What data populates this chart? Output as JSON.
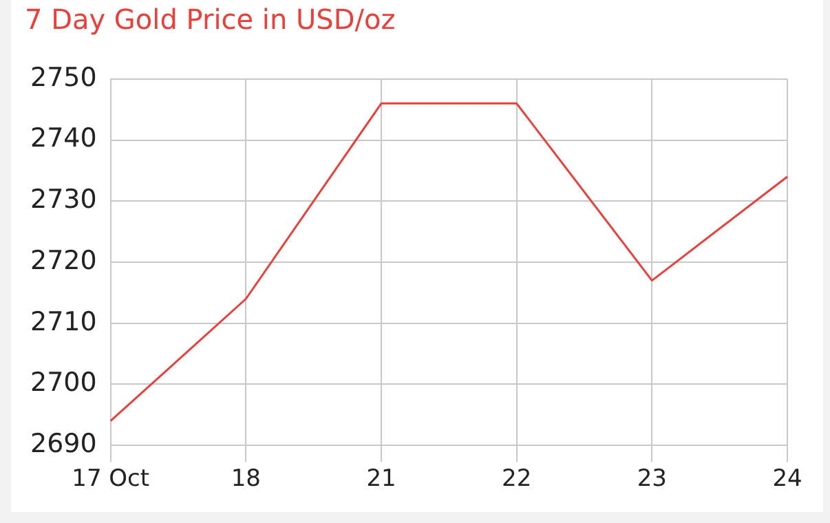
{
  "chart_data": {
    "type": "line",
    "title": "7 Day Gold Price in USD/oz",
    "categories": [
      "17 Oct",
      "18",
      "21",
      "22",
      "23",
      "24"
    ],
    "series": [
      {
        "color": "#e8403a",
        "values": [
          2694,
          2714,
          2746,
          2746,
          2717,
          2734
        ]
      }
    ],
    "ylim": [
      2690,
      2750
    ],
    "yticks": [
      2690,
      2700,
      2710,
      2720,
      2730,
      2740,
      2750
    ],
    "grid": true,
    "legend": false,
    "marker": "none",
    "line_style": "solid"
  }
}
